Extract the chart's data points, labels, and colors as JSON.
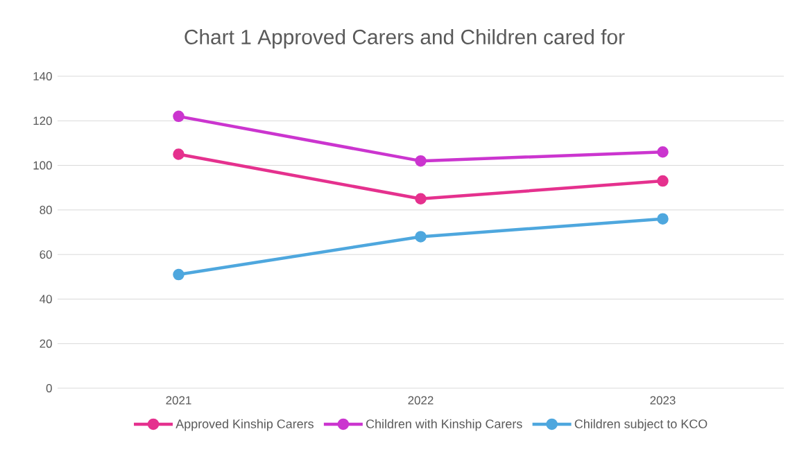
{
  "chart_data": {
    "type": "line",
    "title": "Chart 1 Approved Carers and Children cared for",
    "categories": [
      "2021",
      "2022",
      "2023"
    ],
    "series": [
      {
        "name": "Approved Kinship Carers",
        "color": "#e5318e",
        "values": [
          105,
          85,
          93
        ]
      },
      {
        "name": "Children with Kinship Carers",
        "color": "#cb35cf",
        "values": [
          122,
          102,
          106
        ]
      },
      {
        "name": "Children subject to KCO",
        "color": "#4ea7de",
        "values": [
          51,
          68,
          76
        ]
      }
    ],
    "ylim": [
      0,
      140
    ],
    "yticks": [
      0,
      20,
      40,
      60,
      80,
      100,
      120,
      140
    ],
    "grid": "y",
    "legend": "bottom",
    "marker": "circle",
    "line_style": "solid"
  }
}
